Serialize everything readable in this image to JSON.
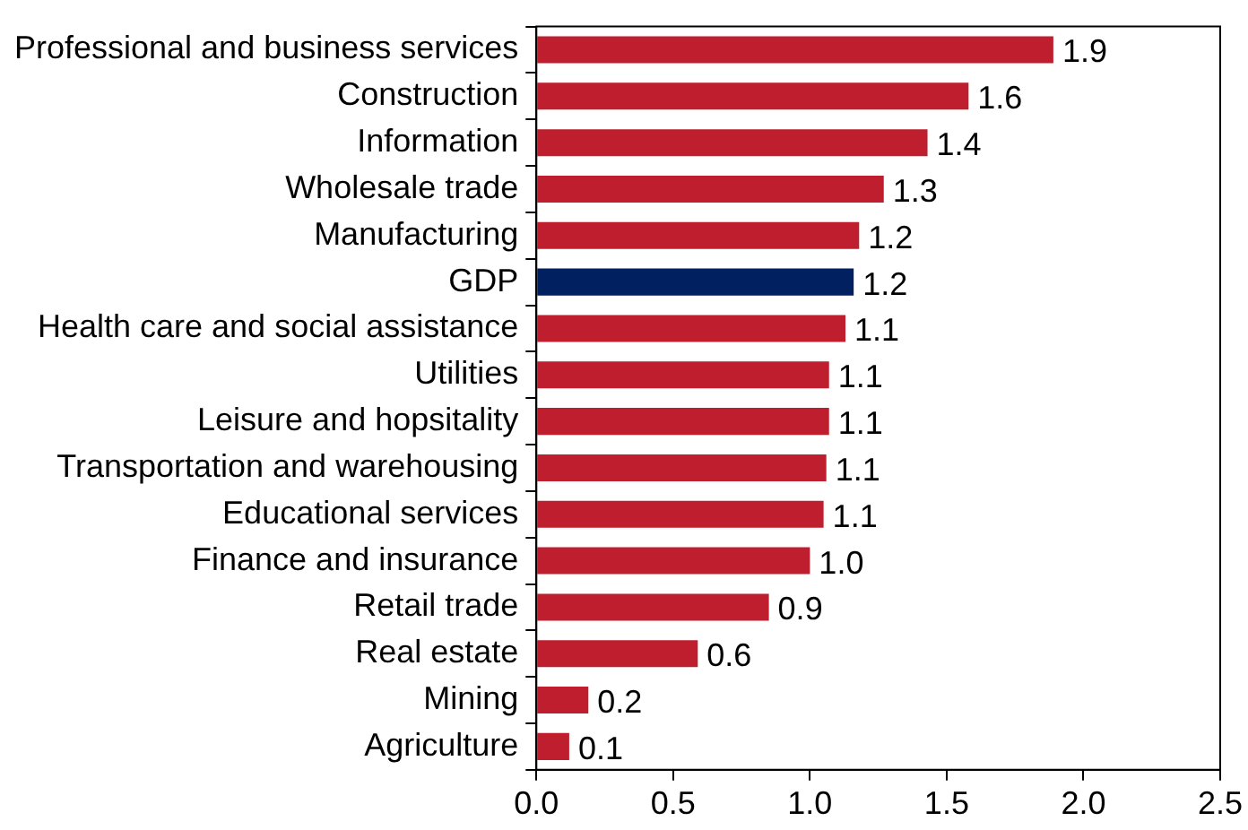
{
  "chart_data": {
    "type": "bar",
    "orientation": "horizontal",
    "categories": [
      "Professional and business services",
      "Construction",
      "Information",
      "Wholesale trade",
      "Manufacturing",
      "GDP",
      "Health care and social assistance",
      "Utilities",
      "Leisure and hopsitality",
      "Transportation and warehousing",
      "Educational services",
      "Finance and insurance",
      "Retail trade",
      "Real estate",
      "Mining",
      "Agriculture"
    ],
    "values": [
      1.89,
      1.58,
      1.43,
      1.27,
      1.18,
      1.16,
      1.13,
      1.07,
      1.07,
      1.06,
      1.05,
      1.0,
      0.85,
      0.59,
      0.19,
      0.12
    ],
    "value_labels": [
      "1.9",
      "1.6",
      "1.4",
      "1.3",
      "1.2",
      "1.2",
      "1.1",
      "1.1",
      "1.1",
      "1.1",
      "1.1",
      "1.0",
      "0.9",
      "0.6",
      "0.2",
      "0.1"
    ],
    "colors": [
      "#be1e2d",
      "#be1e2d",
      "#be1e2d",
      "#be1e2d",
      "#be1e2d",
      "#002060",
      "#be1e2d",
      "#be1e2d",
      "#be1e2d",
      "#be1e2d",
      "#be1e2d",
      "#be1e2d",
      "#be1e2d",
      "#be1e2d",
      "#be1e2d",
      "#be1e2d"
    ],
    "xlim": [
      0,
      2.5
    ],
    "xticks": [
      {
        "value": 0,
        "label": "0.0"
      },
      0.5,
      {
        "value": 1,
        "label": "1.0"
      },
      1.5,
      {
        "value": 2,
        "label": "2.0"
      },
      2.5
    ],
    "grid": false,
    "legend": false
  }
}
